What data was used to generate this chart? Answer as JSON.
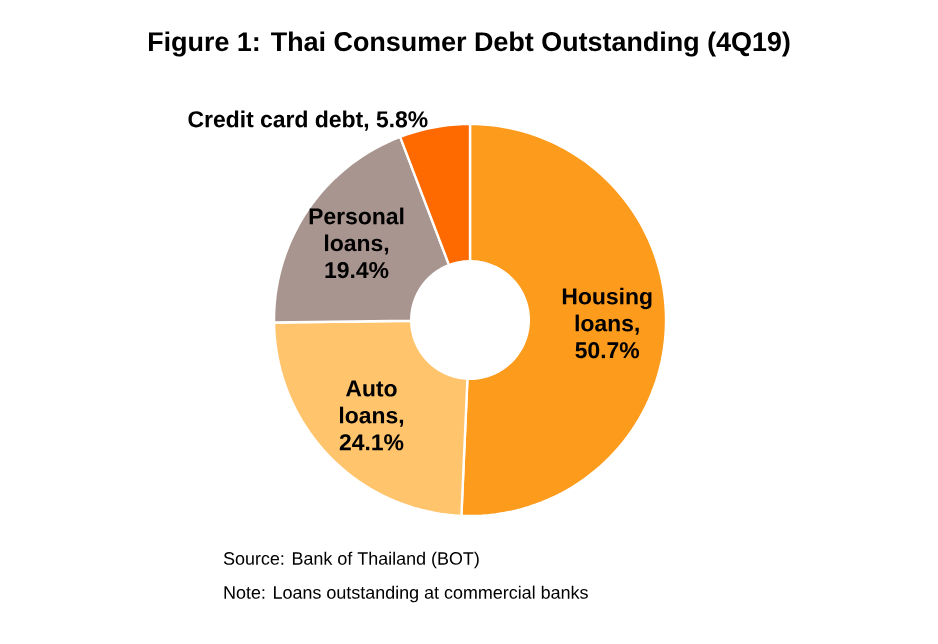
{
  "chart_data": {
    "type": "donut",
    "title": "Figure 1: Thai Consumer Debt Outstanding (4Q19)",
    "categories": [
      "Housing loans",
      "Auto loans",
      "Personal loans",
      "Credit card debt"
    ],
    "values": [
      50.7,
      24.1,
      19.4,
      5.8
    ],
    "value_labels": [
      ", 50.7%",
      ", 24.1%",
      ", 19.4%",
      ", 5.8%"
    ],
    "legend": false,
    "colors": [
      "#fd9b1c",
      "#ffc46c",
      "#a9958f",
      "#ff6a00"
    ],
    "annotations": [
      "Source: Bank of Thailand (BOT)",
      "Note: Loans outstanding at commercial banks"
    ]
  }
}
